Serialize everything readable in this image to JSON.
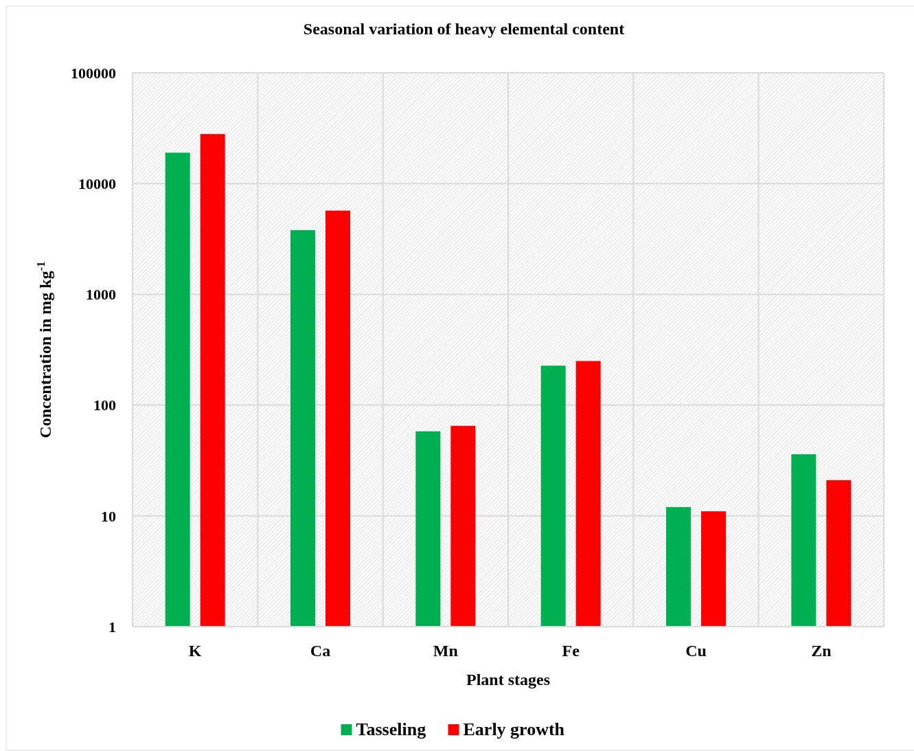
{
  "chart_data": {
    "type": "bar",
    "title": "Seasonal variation of  heavy  elemental content",
    "xlabel": "Plant stages",
    "ylabel": "Concentration in mg kg$^{-1}$",
    "categories": [
      "K",
      "Ca",
      "Mn",
      "Fe",
      "Cu",
      "Zn"
    ],
    "series": [
      {
        "name": "Tasseling",
        "color": "#00b050",
        "values": [
          19000,
          3800,
          58,
          227,
          12,
          36
        ]
      },
      {
        "name": "Early growth",
        "color": "#ff0000",
        "values": [
          28000,
          5700,
          65,
          250,
          11,
          21
        ]
      }
    ],
    "log": true,
    "ylim": [
      1,
      100000
    ],
    "yticks": [
      1,
      10,
      100,
      1000,
      10000,
      100000
    ],
    "grid": true,
    "legend": "bottom"
  }
}
